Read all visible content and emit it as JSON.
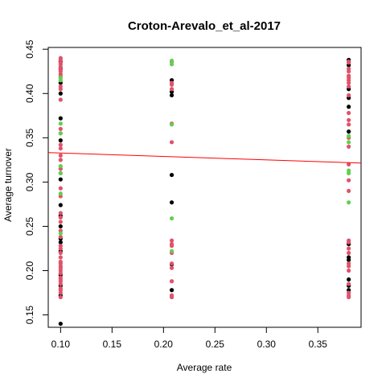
{
  "chart_data": {
    "type": "scatter",
    "title": "Croton-Arevalo_et_al-2017",
    "xlabel": "Average rate",
    "ylabel": "Average turnover",
    "xlim": [
      0.088,
      0.392
    ],
    "ylim": [
      0.136,
      0.452
    ],
    "x_ticks": [
      "0.10",
      "0.15",
      "0.20",
      "0.25",
      "0.30",
      "0.35"
    ],
    "x_tick_values": [
      0.1,
      0.15,
      0.2,
      0.25,
      0.3,
      0.35
    ],
    "y_ticks": [
      "0.15",
      "0.20",
      "0.25",
      "0.30",
      "0.35",
      "0.40",
      "0.45"
    ],
    "y_tick_values": [
      0.15,
      0.2,
      0.25,
      0.3,
      0.35,
      0.4,
      0.45
    ],
    "grid": false,
    "legend": "none",
    "colors": {
      "black": "#000000",
      "red": "#DF536B",
      "green": "#61D04F",
      "line": "#FF0000"
    },
    "series": [
      {
        "color": "black",
        "points": [
          [
            0.1,
            0.14
          ],
          [
            0.1,
            0.172
          ],
          [
            0.1,
            0.183
          ],
          [
            0.1,
            0.195
          ],
          [
            0.1,
            0.222
          ],
          [
            0.1,
            0.232
          ],
          [
            0.1,
            0.236
          ],
          [
            0.1,
            0.25
          ],
          [
            0.1,
            0.262
          ],
          [
            0.1,
            0.274
          ],
          [
            0.1,
            0.303
          ],
          [
            0.1,
            0.347
          ],
          [
            0.1,
            0.372
          ],
          [
            0.1,
            0.4
          ],
          [
            0.1,
            0.412
          ],
          [
            0.1,
            0.428
          ],
          [
            0.1,
            0.436
          ],
          [
            0.208,
            0.178
          ],
          [
            0.208,
            0.207
          ],
          [
            0.208,
            0.277
          ],
          [
            0.208,
            0.308
          ],
          [
            0.208,
            0.398
          ],
          [
            0.208,
            0.402
          ],
          [
            0.208,
            0.415
          ],
          [
            0.38,
            0.178
          ],
          [
            0.38,
            0.183
          ],
          [
            0.38,
            0.19
          ],
          [
            0.38,
            0.212
          ],
          [
            0.38,
            0.215
          ],
          [
            0.38,
            0.23
          ],
          [
            0.38,
            0.357
          ],
          [
            0.38,
            0.385
          ],
          [
            0.38,
            0.395
          ],
          [
            0.38,
            0.405
          ],
          [
            0.38,
            0.432
          ],
          [
            0.38,
            0.438
          ]
        ]
      },
      {
        "color": "red",
        "points": [
          [
            0.1,
            0.17
          ],
          [
            0.1,
            0.175
          ],
          [
            0.1,
            0.178
          ],
          [
            0.1,
            0.18
          ],
          [
            0.1,
            0.185
          ],
          [
            0.1,
            0.188
          ],
          [
            0.1,
            0.19
          ],
          [
            0.1,
            0.192
          ],
          [
            0.1,
            0.197
          ],
          [
            0.1,
            0.2
          ],
          [
            0.1,
            0.203
          ],
          [
            0.1,
            0.205
          ],
          [
            0.1,
            0.208
          ],
          [
            0.1,
            0.21
          ],
          [
            0.1,
            0.215
          ],
          [
            0.1,
            0.22
          ],
          [
            0.1,
            0.225
          ],
          [
            0.1,
            0.228
          ],
          [
            0.1,
            0.238
          ],
          [
            0.1,
            0.245
          ],
          [
            0.1,
            0.255
          ],
          [
            0.1,
            0.26
          ],
          [
            0.1,
            0.265
          ],
          [
            0.1,
            0.284
          ],
          [
            0.1,
            0.293
          ],
          [
            0.1,
            0.31
          ],
          [
            0.1,
            0.315
          ],
          [
            0.1,
            0.325
          ],
          [
            0.1,
            0.33
          ],
          [
            0.1,
            0.338
          ],
          [
            0.1,
            0.342
          ],
          [
            0.1,
            0.355
          ],
          [
            0.1,
            0.36
          ],
          [
            0.1,
            0.393
          ],
          [
            0.1,
            0.405
          ],
          [
            0.1,
            0.408
          ],
          [
            0.1,
            0.418
          ],
          [
            0.1,
            0.42
          ],
          [
            0.1,
            0.422
          ],
          [
            0.1,
            0.425
          ],
          [
            0.1,
            0.427
          ],
          [
            0.1,
            0.43
          ],
          [
            0.1,
            0.433
          ],
          [
            0.1,
            0.435
          ],
          [
            0.1,
            0.438
          ],
          [
            0.1,
            0.44
          ],
          [
            0.208,
            0.17
          ],
          [
            0.208,
            0.172
          ],
          [
            0.208,
            0.188
          ],
          [
            0.208,
            0.203
          ],
          [
            0.208,
            0.208
          ],
          [
            0.208,
            0.22
          ],
          [
            0.208,
            0.228
          ],
          [
            0.208,
            0.23
          ],
          [
            0.208,
            0.234
          ],
          [
            0.208,
            0.345
          ],
          [
            0.208,
            0.366
          ],
          [
            0.208,
            0.405
          ],
          [
            0.208,
            0.41
          ],
          [
            0.208,
            0.412
          ],
          [
            0.208,
            0.436
          ],
          [
            0.38,
            0.17
          ],
          [
            0.38,
            0.172
          ],
          [
            0.38,
            0.175
          ],
          [
            0.38,
            0.185
          ],
          [
            0.38,
            0.2
          ],
          [
            0.38,
            0.205
          ],
          [
            0.38,
            0.208
          ],
          [
            0.38,
            0.22
          ],
          [
            0.38,
            0.225
          ],
          [
            0.38,
            0.232
          ],
          [
            0.38,
            0.234
          ],
          [
            0.38,
            0.29
          ],
          [
            0.38,
            0.302
          ],
          [
            0.38,
            0.32
          ],
          [
            0.38,
            0.34
          ],
          [
            0.38,
            0.35
          ],
          [
            0.38,
            0.365
          ],
          [
            0.38,
            0.37
          ],
          [
            0.38,
            0.378
          ],
          [
            0.38,
            0.398
          ],
          [
            0.38,
            0.408
          ],
          [
            0.38,
            0.412
          ],
          [
            0.38,
            0.415
          ],
          [
            0.38,
            0.418
          ],
          [
            0.38,
            0.42
          ],
          [
            0.38,
            0.425
          ],
          [
            0.38,
            0.428
          ],
          [
            0.38,
            0.435
          ],
          [
            0.38,
            0.436
          ]
        ]
      },
      {
        "color": "green",
        "points": [
          [
            0.1,
            0.242
          ],
          [
            0.1,
            0.287
          ],
          [
            0.1,
            0.31
          ],
          [
            0.1,
            0.318
          ],
          [
            0.1,
            0.355
          ],
          [
            0.1,
            0.366
          ],
          [
            0.1,
            0.415
          ],
          [
            0.1,
            0.418
          ],
          [
            0.208,
            0.222
          ],
          [
            0.208,
            0.259
          ],
          [
            0.208,
            0.365
          ],
          [
            0.208,
            0.433
          ],
          [
            0.208,
            0.437
          ],
          [
            0.38,
            0.277
          ],
          [
            0.38,
            0.31
          ],
          [
            0.38,
            0.313
          ],
          [
            0.38,
            0.345
          ],
          [
            0.38,
            0.352
          ]
        ]
      }
    ],
    "fit_line": {
      "x": [
        0.088,
        0.392
      ],
      "y": [
        0.3333,
        0.3215
      ]
    }
  }
}
